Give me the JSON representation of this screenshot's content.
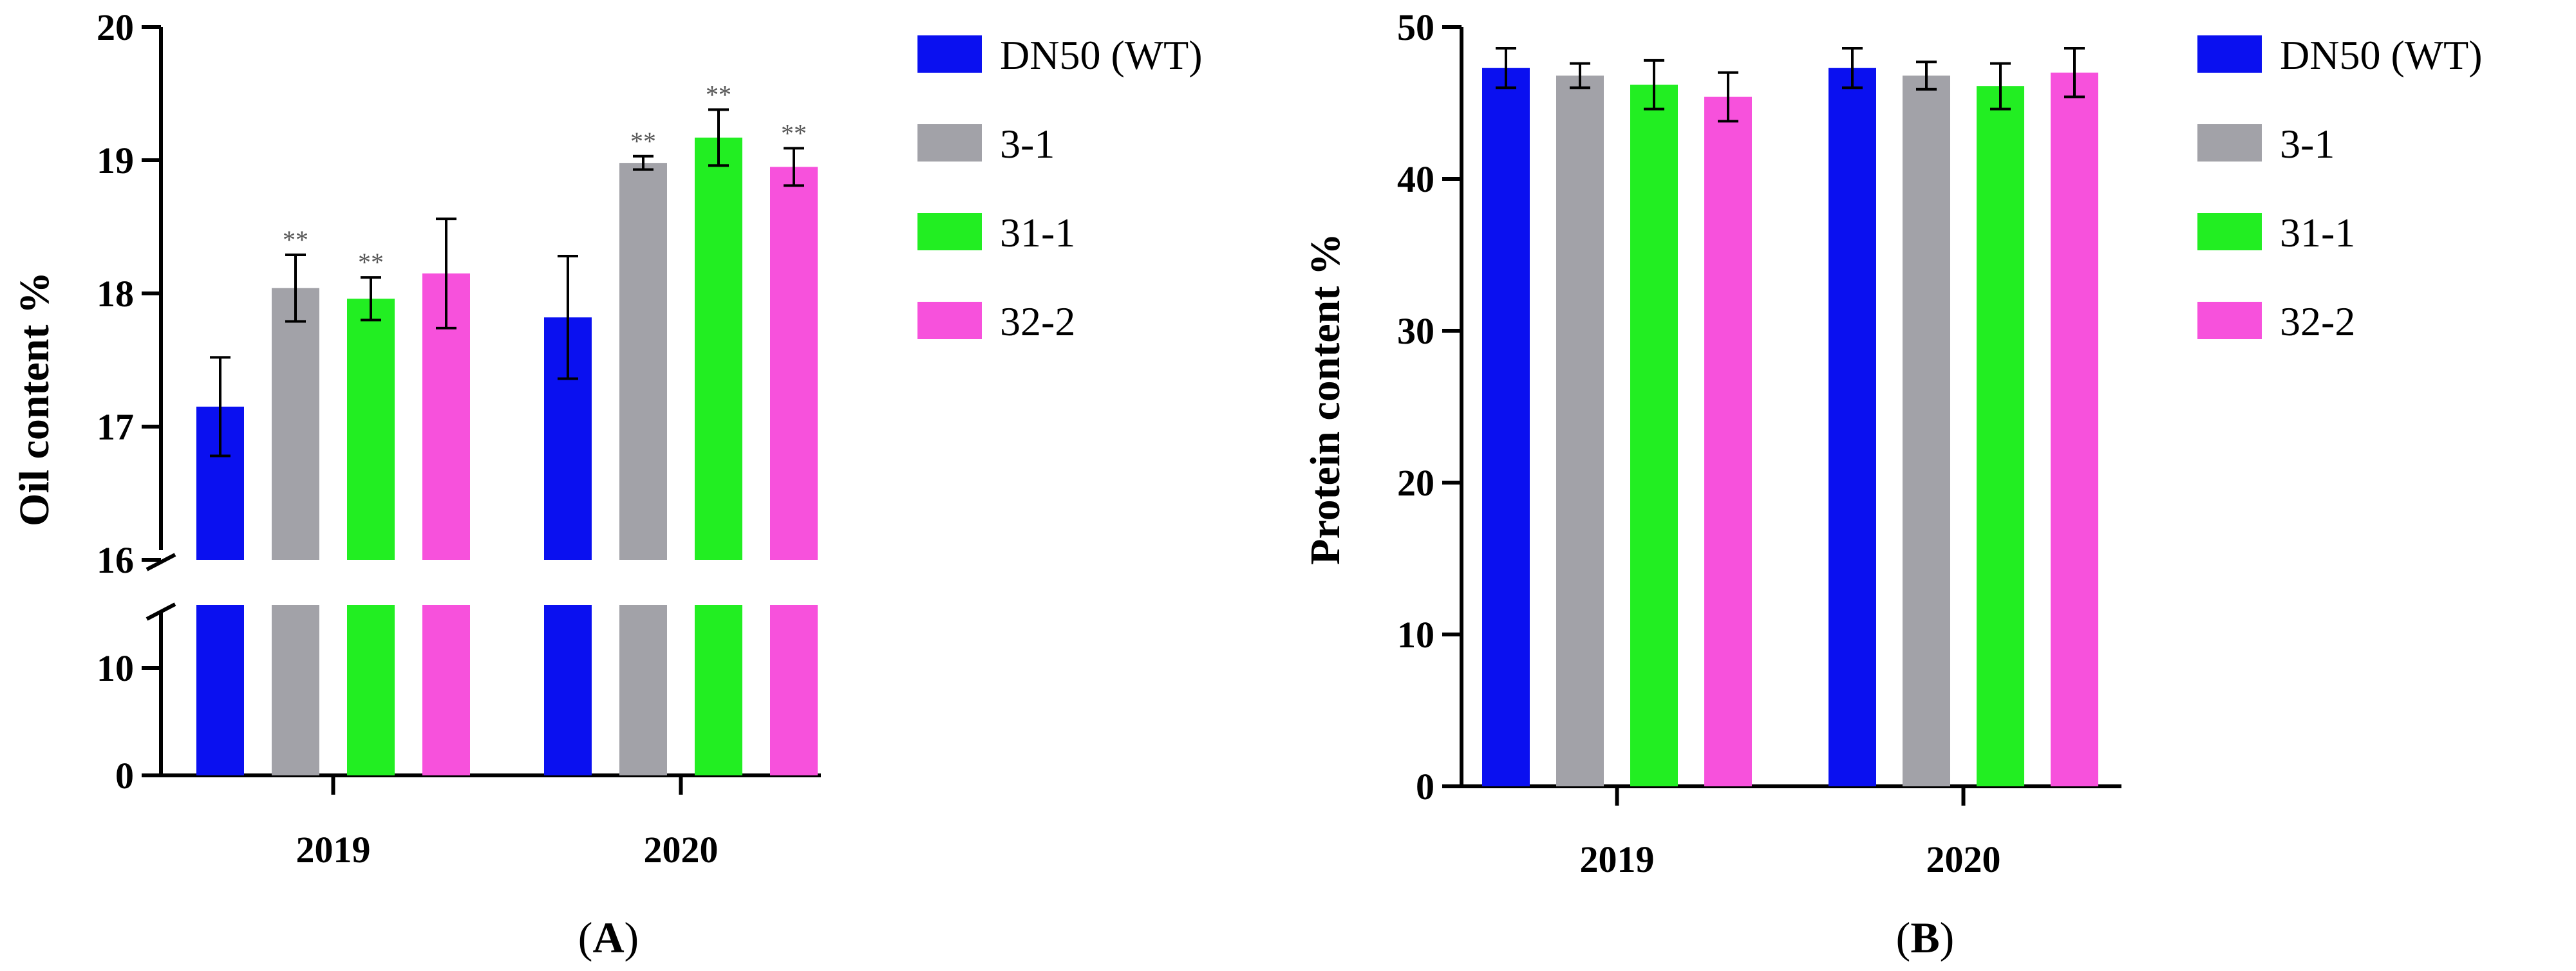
{
  "chart_data": [
    {
      "panel": "A",
      "type": "bar",
      "ylabel": "Oil content %",
      "categories": [
        "2019",
        "2020"
      ],
      "axis_break": true,
      "yticks_upper": [
        16,
        17,
        18,
        19,
        20
      ],
      "yticks_lower": [
        0,
        10
      ],
      "series": [
        {
          "name": "DN50 (WT)",
          "color": "#0a10f0",
          "values": [
            17.15,
            17.82
          ],
          "errors": [
            0.37,
            0.46
          ],
          "sig": [
            "",
            ""
          ]
        },
        {
          "name": "3-1",
          "color": "#a2a2a8",
          "values": [
            18.04,
            18.98
          ],
          "errors": [
            0.25,
            0.05
          ],
          "sig": [
            "**",
            "**"
          ]
        },
        {
          "name": "31-1",
          "color": "#22ee22",
          "values": [
            17.96,
            19.17
          ],
          "errors": [
            0.16,
            0.21
          ],
          "sig": [
            "**",
            "**"
          ]
        },
        {
          "name": "32-2",
          "color": "#f751dc",
          "values": [
            18.15,
            18.95
          ],
          "errors": [
            0.41,
            0.14
          ],
          "sig": [
            "",
            "**"
          ]
        }
      ]
    },
    {
      "panel": "B",
      "type": "bar",
      "ylabel": "Protein content %",
      "categories": [
        "2019",
        "2020"
      ],
      "ylim": [
        0,
        50
      ],
      "yticks": [
        0,
        10,
        20,
        30,
        40,
        50
      ],
      "series": [
        {
          "name": "DN50 (WT)",
          "color": "#0a10f0",
          "values": [
            47.3,
            47.3
          ],
          "errors": [
            1.3,
            1.3
          ]
        },
        {
          "name": "3-1",
          "color": "#a2a2a8",
          "values": [
            46.8,
            46.8
          ],
          "errors": [
            0.8,
            0.9
          ]
        },
        {
          "name": "31-1",
          "color": "#22ee22",
          "values": [
            46.2,
            46.1
          ],
          "errors": [
            1.6,
            1.5
          ]
        },
        {
          "name": "32-2",
          "color": "#f751dc",
          "values": [
            45.4,
            47.0
          ],
          "errors": [
            1.6,
            1.6
          ]
        }
      ]
    }
  ],
  "panel_labels": {
    "a_open": "(",
    "a": "A",
    "a_close": ")",
    "b_open": "(",
    "b": "B",
    "b_close": ")"
  }
}
